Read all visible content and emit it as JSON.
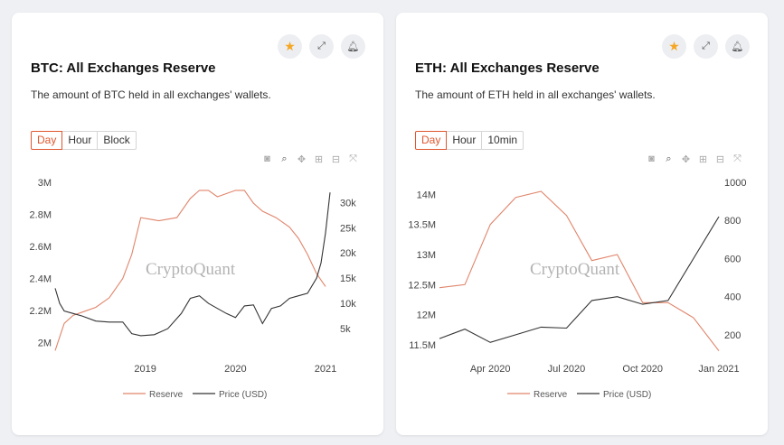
{
  "colors": {
    "reserve": "#e0856b",
    "price": "#333333",
    "accent": "#e0562f",
    "star": "#f5a623"
  },
  "cards": {
    "btc": {
      "title": "BTC: All Exchanges Reserve",
      "description": "The amount of BTC held in all exchanges' wallets.",
      "periods": [
        "Day",
        "Hour",
        "Block"
      ],
      "active_period": "Day",
      "watermark": "CryptoQuant",
      "legend": {
        "reserve": "Reserve",
        "price": "Price (USD)"
      },
      "left_ticks": [
        "3M",
        "2.8M",
        "2.6M",
        "2.4M",
        "2.2M",
        "2M"
      ],
      "right_ticks": [
        "30k",
        "25k",
        "20k",
        "15k",
        "10k",
        "5k"
      ],
      "x_ticks": [
        "2019",
        "2020",
        "2021"
      ]
    },
    "eth": {
      "title": "ETH: All Exchanges Reserve",
      "description": "The amount of ETH held in all exchanges' wallets.",
      "periods": [
        "Day",
        "Hour",
        "10min"
      ],
      "active_period": "Day",
      "watermark": "CryptoQuant",
      "legend": {
        "reserve": "Reserve",
        "price": "Price (USD)"
      },
      "left_ticks": [
        "14M",
        "13.5M",
        "13M",
        "12.5M",
        "12M",
        "11.5M"
      ],
      "right_ticks": [
        "1000",
        "800",
        "600",
        "400",
        "200"
      ],
      "x_ticks": [
        "Apr 2020",
        "Jul 2020",
        "Oct 2020",
        "Jan 2021"
      ]
    }
  },
  "chart_data": [
    {
      "type": "line",
      "title": "BTC: All Exchanges Reserve",
      "x_range": [
        2018.0,
        2021.1
      ],
      "y_left_range": [
        1.93,
        3.0
      ],
      "y_left_unit": "M",
      "y_right_range": [
        0,
        34
      ],
      "y_right_unit": "k",
      "series": [
        {
          "name": "Reserve",
          "axis": "left",
          "x": [
            2018.0,
            2018.1,
            2018.2,
            2018.3,
            2018.45,
            2018.6,
            2018.75,
            2018.85,
            2018.95,
            2019.05,
            2019.15,
            2019.35,
            2019.5,
            2019.6,
            2019.7,
            2019.8,
            2020.0,
            2020.1,
            2020.2,
            2020.3,
            2020.45,
            2020.6,
            2020.7,
            2020.8,
            2020.9,
            2021.0
          ],
          "values": [
            1.95,
            2.12,
            2.17,
            2.19,
            2.22,
            2.28,
            2.4,
            2.55,
            2.78,
            2.77,
            2.76,
            2.78,
            2.9,
            2.95,
            2.95,
            2.91,
            2.95,
            2.95,
            2.87,
            2.82,
            2.78,
            2.72,
            2.65,
            2.55,
            2.43,
            2.35
          ]
        },
        {
          "name": "Price (USD)",
          "axis": "right",
          "x": [
            2018.0,
            2018.05,
            2018.1,
            2018.2,
            2018.3,
            2018.45,
            2018.6,
            2018.75,
            2018.85,
            2018.95,
            2019.1,
            2019.25,
            2019.4,
            2019.5,
            2019.6,
            2019.7,
            2019.8,
            2019.9,
            2020.0,
            2020.1,
            2020.2,
            2020.3,
            2020.4,
            2020.5,
            2020.6,
            2020.7,
            2020.8,
            2020.9,
            2020.95,
            2021.0,
            2021.05
          ],
          "values": [
            13,
            10,
            8.5,
            8,
            7.5,
            6.5,
            6.3,
            6.3,
            4,
            3.6,
            3.8,
            5,
            8,
            11,
            11.5,
            10,
            9,
            8,
            7.2,
            9.5,
            9.7,
            6,
            9,
            9.5,
            11,
            11.5,
            12,
            15,
            18,
            24,
            32
          ]
        }
      ]
    },
    {
      "type": "line",
      "title": "ETH: All Exchanges Reserve",
      "x": [
        "Feb 2020",
        "Mar 2020",
        "Apr 2020",
        "May 2020",
        "Jun 2020",
        "Jul 2020",
        "Aug 2020",
        "Sep 2020",
        "Oct 2020",
        "Nov 2020",
        "Dec 2020",
        "Jan 2021"
      ],
      "x_ticks": [
        "Apr 2020",
        "Jul 2020",
        "Oct 2020",
        "Jan 2021"
      ],
      "y_left_range": [
        11.35,
        14.2
      ],
      "y_left_unit": "M",
      "y_right_range": [
        100,
        1000
      ],
      "series": [
        {
          "name": "Reserve",
          "axis": "left",
          "values": [
            12.45,
            12.5,
            13.5,
            13.95,
            14.05,
            13.65,
            12.9,
            13.0,
            12.2,
            12.2,
            11.95,
            11.4
          ]
        },
        {
          "name": "Price (USD)",
          "axis": "right",
          "values": [
            180,
            230,
            160,
            200,
            240,
            235,
            380,
            400,
            360,
            380,
            600,
            820
          ]
        }
      ]
    }
  ]
}
